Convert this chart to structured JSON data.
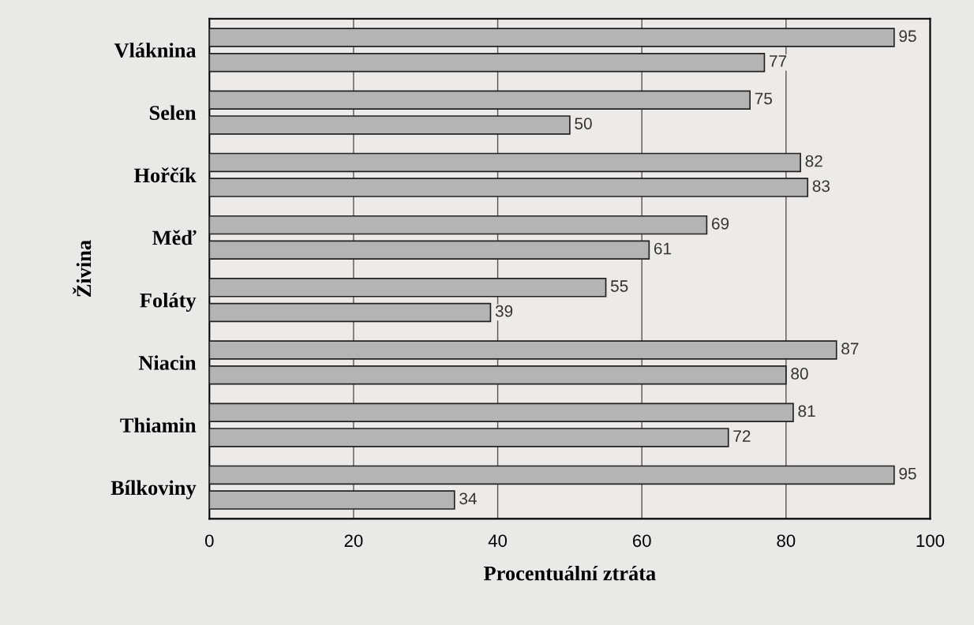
{
  "chart_data": {
    "type": "bar",
    "orientation": "horizontal",
    "xlabel": "Procentuální ztráta",
    "ylabel": "Živina",
    "categories": [
      "Vláknina",
      "Selen",
      "Hořčík",
      "Měď",
      "Foláty",
      "Niacin",
      "Thiamin",
      "Bílkoviny"
    ],
    "series": [
      {
        "color": "#b4b4b4",
        "values": [
          95,
          75,
          82,
          69,
          55,
          87,
          81,
          95
        ]
      },
      {
        "color": "#b4b4b4",
        "values": [
          77,
          50,
          83,
          61,
          39,
          80,
          72,
          34
        ]
      }
    ],
    "xlim": [
      0,
      100
    ],
    "xticks": [
      0,
      20,
      40,
      60,
      80,
      100
    ],
    "grid": "x",
    "data_labels": true,
    "legend": false
  }
}
